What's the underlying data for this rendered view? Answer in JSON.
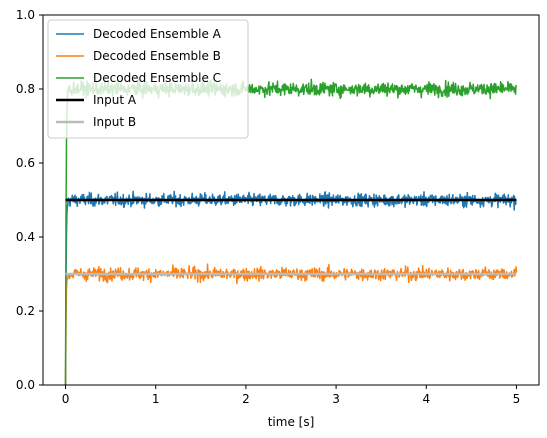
{
  "chart_data": {
    "type": "line",
    "xlabel": "time [s]",
    "ylabel": "",
    "xlim": [
      -0.25,
      5.25
    ],
    "ylim": [
      0.0,
      1.0
    ],
    "xticks": [
      0,
      1,
      2,
      3,
      4,
      5
    ],
    "xtick_labels": [
      "0",
      "1",
      "2",
      "3",
      "4",
      "5"
    ],
    "yticks": [
      0.0,
      0.2,
      0.4,
      0.6,
      0.8,
      1.0
    ],
    "ytick_labels": [
      "0.0",
      "0.2",
      "0.4",
      "0.6",
      "0.8",
      "1.0"
    ],
    "grid": false,
    "legend_location": "upper-left",
    "series": [
      {
        "name": "Decoded Ensemble A",
        "color": "#1f77b4",
        "style": "noisy",
        "target": 0.5,
        "noise": 0.012,
        "x_range": [
          0,
          5
        ]
      },
      {
        "name": "Decoded Ensemble B",
        "color": "#ff7f0e",
        "style": "noisy",
        "target": 0.3,
        "noise": 0.012,
        "x_range": [
          0,
          5
        ]
      },
      {
        "name": "Decoded Ensemble C",
        "color": "#2ca02c",
        "style": "noisy",
        "target": 0.8,
        "noise": 0.013,
        "x_range": [
          0,
          5
        ]
      },
      {
        "name": "Input A",
        "color": "#000000",
        "style": "constant",
        "value": 0.5,
        "x_range": [
          0,
          5
        ]
      },
      {
        "name": "Input B",
        "color": "#bbbbbb",
        "style": "constant",
        "value": 0.3,
        "x_range": [
          0,
          5
        ]
      }
    ]
  }
}
